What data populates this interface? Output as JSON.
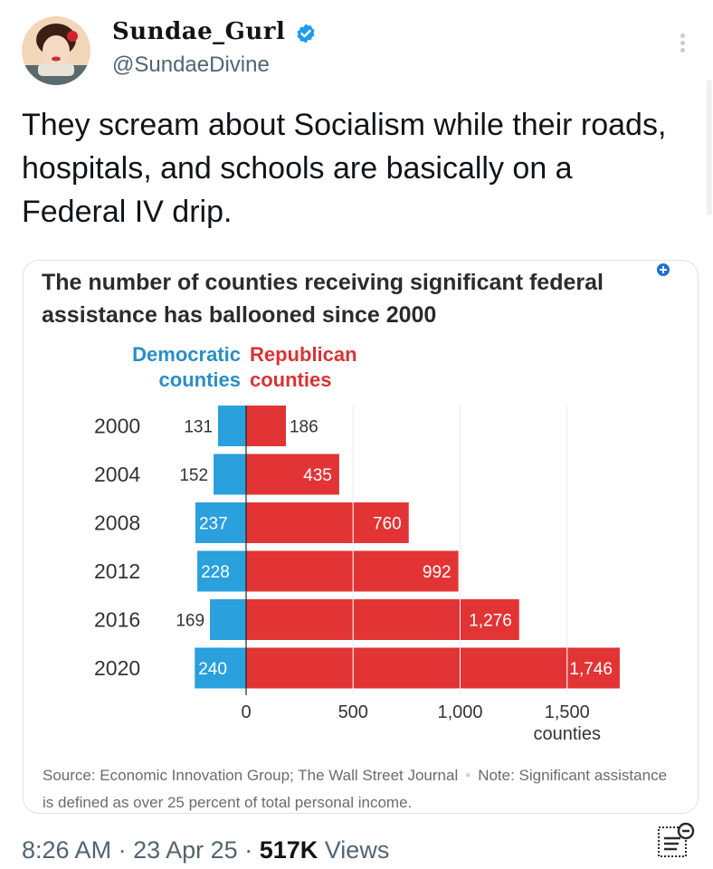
{
  "tweet": {
    "display_name": "Sundae_Gurl",
    "handle": "@SundaeDivine",
    "text": "They scream about Socialism while their roads, hospitals, and schools are basically on a Federal IV drip.",
    "time": "8:26 AM",
    "date": "23 Apr 25",
    "views_count": "517K",
    "views_label": "Views",
    "separator": "·",
    "icons": {
      "verified": "verified-badge-icon",
      "more": "more-options-icon",
      "views": "post-analytics-icon",
      "card": "source-badge-icon"
    }
  },
  "chart_data": {
    "type": "bar",
    "title": "The number of counties receiving significant federal assistance has ballooned since 2000",
    "categories": [
      "2000",
      "2004",
      "2008",
      "2012",
      "2016",
      "2020"
    ],
    "series": [
      {
        "name": "Democratic counties",
        "legend": [
          "Democratic",
          "counties"
        ],
        "color": "#2aa0dc",
        "values": [
          131,
          152,
          237,
          228,
          169,
          240
        ],
        "labels": [
          "131",
          "152",
          "237",
          "228",
          "169",
          "240"
        ]
      },
      {
        "name": "Republican counties",
        "legend": [
          "Republican",
          "counties"
        ],
        "color": "#e23435",
        "values": [
          186,
          435,
          760,
          992,
          1276,
          1746
        ],
        "labels": [
          "186",
          "435",
          "760",
          "992",
          "1,276",
          "1,746"
        ]
      }
    ],
    "ticks": [
      0,
      500,
      1000,
      1500
    ],
    "tick_labels": [
      "0",
      "500",
      "1,000",
      "1,500"
    ],
    "xlabel": "counties",
    "xlim": [
      0,
      1750
    ],
    "grid": true,
    "source": "Source: Economic Innovation Group; The Wall Street Journal",
    "note": "Note: Significant assistance is defined as over 25 percent of total personal income."
  }
}
